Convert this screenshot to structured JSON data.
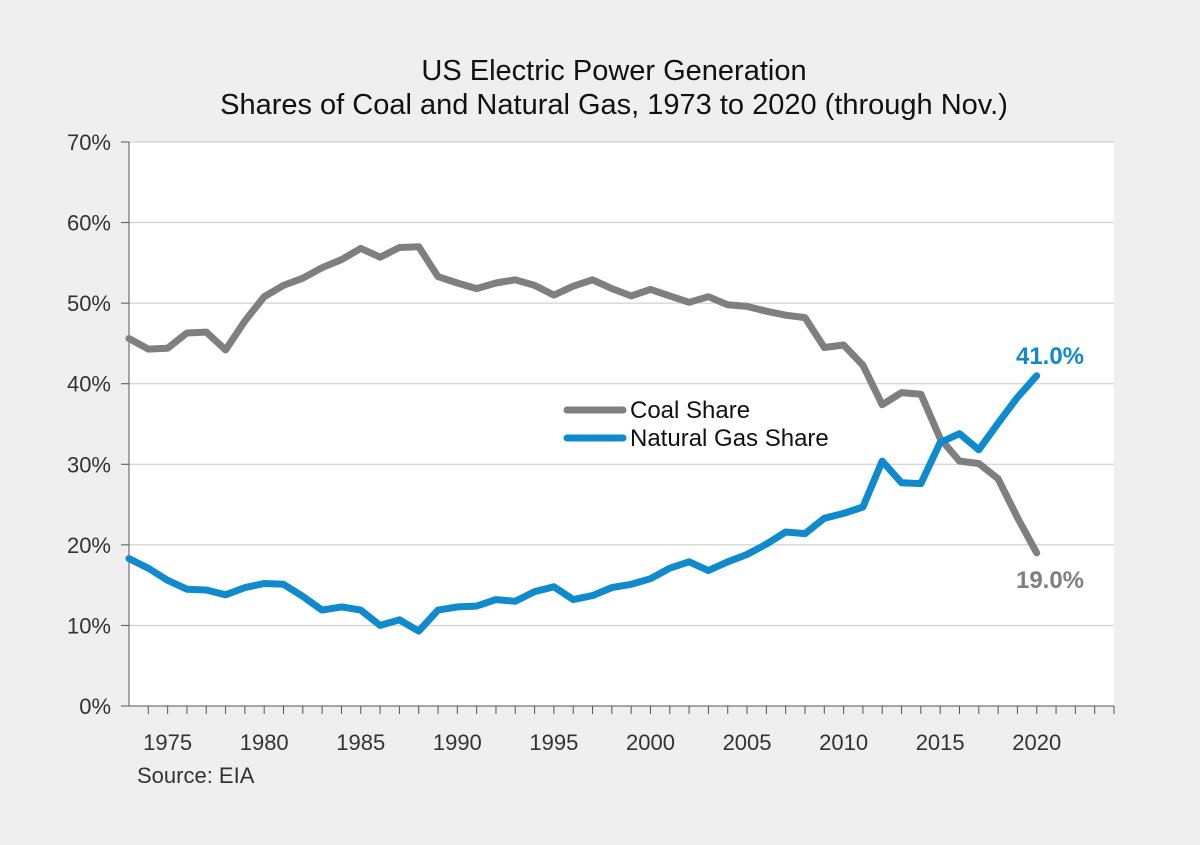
{
  "chart_data": {
    "type": "line",
    "title": "US Electric Power Generation",
    "subtitle": "Shares of Coal and Natural Gas, 1973 to 2020 (through Nov.)",
    "source": "Source: EIA",
    "xlabel": "",
    "ylabel": "",
    "xlim": [
      1973,
      2024
    ],
    "ylim": [
      0,
      70
    ],
    "x_ticks": [
      1975,
      1980,
      1985,
      1990,
      1995,
      2000,
      2005,
      2010,
      2015,
      2020
    ],
    "y_ticks": [
      {
        "value": 0,
        "label": "0%"
      },
      {
        "value": 10,
        "label": "10%"
      },
      {
        "value": 20,
        "label": "20%"
      },
      {
        "value": 30,
        "label": "30%"
      },
      {
        "value": 40,
        "label": "40%"
      },
      {
        "value": 50,
        "label": "50%"
      },
      {
        "value": 60,
        "label": "60%"
      },
      {
        "value": 70,
        "label": "70%"
      }
    ],
    "grid": true,
    "legend_position": "center-right",
    "x": [
      1973,
      1974,
      1975,
      1976,
      1977,
      1978,
      1979,
      1980,
      1981,
      1982,
      1983,
      1984,
      1985,
      1986,
      1987,
      1988,
      1989,
      1990,
      1991,
      1992,
      1993,
      1994,
      1995,
      1996,
      1997,
      1998,
      1999,
      2000,
      2001,
      2002,
      2003,
      2004,
      2005,
      2006,
      2007,
      2008,
      2009,
      2010,
      2011,
      2012,
      2013,
      2014,
      2015,
      2016,
      2017,
      2018,
      2019,
      2020
    ],
    "series": [
      {
        "name": "Coal Share",
        "color": "#7f7f7f",
        "end_label": "19.0%",
        "values": [
          45.6,
          44.3,
          44.4,
          46.3,
          46.4,
          44.2,
          47.8,
          50.8,
          52.2,
          53.1,
          54.4,
          55.4,
          56.8,
          55.7,
          56.9,
          57.0,
          53.3,
          52.5,
          51.8,
          52.5,
          52.9,
          52.2,
          51.0,
          52.1,
          52.9,
          51.8,
          50.9,
          51.7,
          50.9,
          50.1,
          50.8,
          49.8,
          49.6,
          49.0,
          48.5,
          48.2,
          44.5,
          44.8,
          42.3,
          37.4,
          38.9,
          38.7,
          33.2,
          30.4,
          30.1,
          28.2,
          23.4,
          19.0
        ]
      },
      {
        "name": "Natural Gas Share",
        "color": "#0f8bcd",
        "end_label": "41.0%",
        "values": [
          18.3,
          17.1,
          15.6,
          14.5,
          14.4,
          13.8,
          14.7,
          15.2,
          15.1,
          13.6,
          11.9,
          12.3,
          11.9,
          10.0,
          10.7,
          9.3,
          11.9,
          12.3,
          12.4,
          13.2,
          13.0,
          14.2,
          14.8,
          13.2,
          13.7,
          14.7,
          15.1,
          15.8,
          17.1,
          17.9,
          16.8,
          17.9,
          18.8,
          20.1,
          21.6,
          21.4,
          23.3,
          23.9,
          24.7,
          30.4,
          27.7,
          27.6,
          32.7,
          33.8,
          31.8,
          35.1,
          38.3,
          41.0
        ]
      }
    ]
  }
}
